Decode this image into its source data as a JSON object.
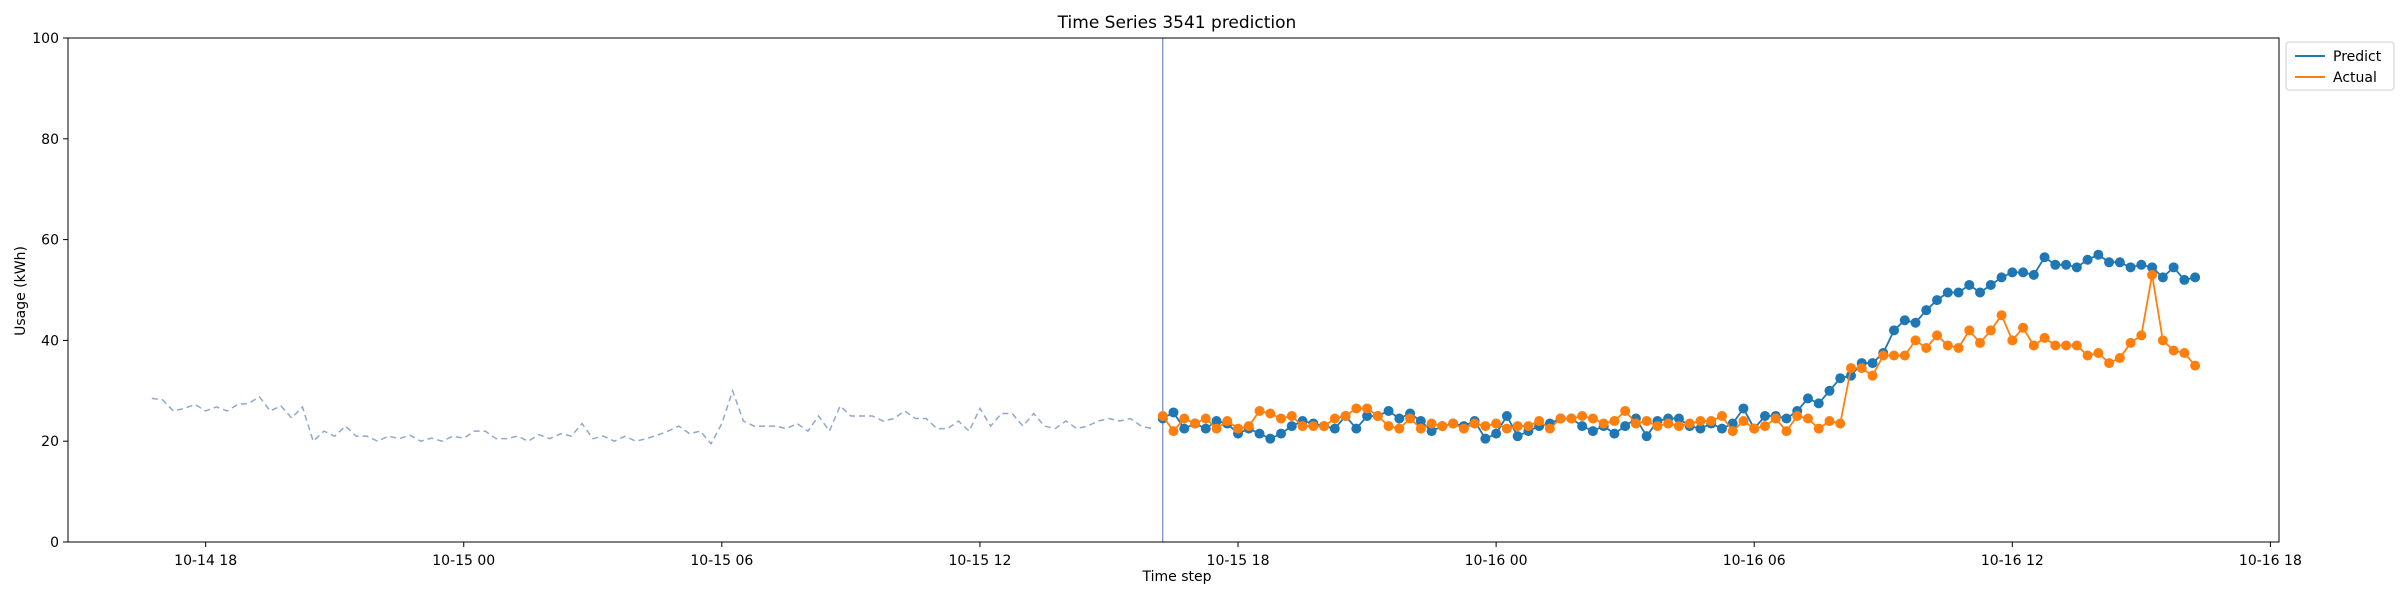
{
  "chart_data": {
    "type": "line",
    "title": "Time Series 3541 prediction",
    "xlabel": "Time step",
    "ylabel": "Usage (kWh)",
    "ylim": [
      0,
      100
    ],
    "yticks": [
      0,
      20,
      40,
      60,
      80,
      100
    ],
    "xlim": [
      "2023-10-14 14:48",
      "2023-10-16 18:12"
    ],
    "xticks": [
      {
        "value": "2023-10-14 18:00",
        "label": "10-14 18"
      },
      {
        "value": "2023-10-15 00:00",
        "label": "10-15 00"
      },
      {
        "value": "2023-10-15 06:00",
        "label": "10-15 06"
      },
      {
        "value": "2023-10-15 12:00",
        "label": "10-15 12"
      },
      {
        "value": "2023-10-15 18:00",
        "label": "10-15 18"
      },
      {
        "value": "2023-10-16 00:00",
        "label": "10-16 00"
      },
      {
        "value": "2023-10-16 06:00",
        "label": "10-16 06"
      },
      {
        "value": "2023-10-16 12:00",
        "label": "10-16 12"
      },
      {
        "value": "2023-10-16 18:00",
        "label": "10-16 18"
      }
    ],
    "legend": {
      "placement": "upper-right-outside"
    },
    "forecast_start": "2023-10-15 16:15",
    "history": {
      "start": "2023-10-14 16:45",
      "interval_minutes": 15,
      "values": [
        28.5,
        28.2,
        26.0,
        26.5,
        27.3,
        26.0,
        26.8,
        26.0,
        27.3,
        27.5,
        28.8,
        26.0,
        27.0,
        24.6,
        26.8,
        20.0,
        22.0,
        21.0,
        23.0,
        21.0,
        21.0,
        20.0,
        21.0,
        20.5,
        21.2,
        20.0,
        20.6,
        20.0,
        21.0,
        20.6,
        22.0,
        22.0,
        20.5,
        20.5,
        21.0,
        20.0,
        21.3,
        20.5,
        21.5,
        21.0,
        23.5,
        20.5,
        21.0,
        20.0,
        21.0,
        20.0,
        20.5,
        21.2,
        22.0,
        23.0,
        21.5,
        22.0,
        19.5,
        23.5,
        30.0,
        24.0,
        23.0,
        23.0,
        23.0,
        22.5,
        23.5,
        22.0,
        25.0,
        22.0,
        27.0,
        25.0,
        25.0,
        25.0,
        24.0,
        24.5,
        26.0,
        24.5,
        24.5,
        22.5,
        22.5,
        24.0,
        22.0,
        26.5,
        23.0,
        25.5,
        25.5,
        23.0,
        25.5,
        23.0,
        22.5,
        24.0,
        22.5,
        23.0,
        24.0,
        24.5,
        24.0,
        24.5,
        23.0,
        22.5
      ]
    },
    "series": [
      {
        "name": "Predict",
        "color": "#1f77b4",
        "start": "2023-10-15 16:15",
        "interval_minutes": 15,
        "values": [
          24.5,
          25.7,
          22.5,
          23.5,
          22.5,
          24.0,
          23.5,
          21.5,
          22.5,
          21.5,
          20.5,
          21.5,
          23.0,
          24.0,
          23.5,
          23.0,
          22.5,
          25.0,
          22.5,
          25.0,
          25.0,
          26.0,
          24.5,
          25.5,
          24.0,
          22.0,
          23.0,
          23.5,
          23.0,
          24.0,
          20.5,
          21.5,
          25.0,
          21.0,
          22.0,
          23.0,
          23.5,
          24.5,
          24.5,
          23.0,
          22.0,
          23.0,
          21.5,
          23.0,
          24.5,
          21.0,
          24.0,
          24.5,
          24.5,
          23.0,
          22.5,
          23.5,
          22.5,
          23.5,
          26.5,
          22.5,
          25.0,
          25.0,
          24.5,
          26.0,
          28.5,
          27.5,
          30.0,
          32.5,
          33.0,
          35.5,
          35.5,
          37.5,
          42.0,
          44.0,
          43.5,
          46.0,
          48.0,
          49.5,
          49.5,
          51.0,
          49.5,
          51.0,
          52.5,
          53.5,
          53.5,
          53.0,
          56.5,
          55.0,
          55.0,
          54.5,
          56.0,
          57.0,
          55.5,
          55.5,
          54.5,
          55.0,
          54.5,
          52.5,
          54.5,
          52.0,
          52.5
        ]
      },
      {
        "name": "Actual",
        "color": "#ff7f0e",
        "start": "2023-10-15 16:15",
        "interval_minutes": 15,
        "values": [
          25.0,
          22.0,
          24.5,
          23.5,
          24.5,
          22.5,
          24.0,
          22.5,
          23.0,
          26.0,
          25.5,
          24.5,
          25.0,
          23.0,
          23.0,
          23.0,
          24.5,
          25.0,
          26.5,
          26.5,
          25.0,
          23.0,
          22.5,
          24.5,
          22.5,
          23.5,
          23.0,
          23.5,
          22.5,
          23.5,
          23.0,
          23.5,
          22.5,
          23.0,
          23.0,
          24.0,
          22.5,
          24.5,
          24.5,
          25.0,
          24.5,
          23.5,
          24.0,
          26.0,
          23.5,
          24.0,
          23.0,
          23.5,
          23.0,
          23.5,
          24.0,
          24.0,
          25.0,
          22.0,
          24.0,
          22.5,
          23.0,
          24.5,
          22.0,
          25.0,
          24.5,
          22.5,
          24.0,
          23.5,
          34.5,
          34.5,
          33.0,
          37.0,
          37.0,
          37.0,
          40.0,
          38.5,
          41.0,
          39.0,
          38.5,
          42.0,
          39.5,
          42.0,
          45.0,
          40.0,
          42.5,
          39.0,
          40.5,
          39.0,
          39.0,
          39.0,
          37.0,
          37.5,
          35.5,
          36.5,
          39.5,
          41.0,
          53.0,
          40.0,
          38.0,
          37.5,
          35.0
        ]
      }
    ]
  }
}
